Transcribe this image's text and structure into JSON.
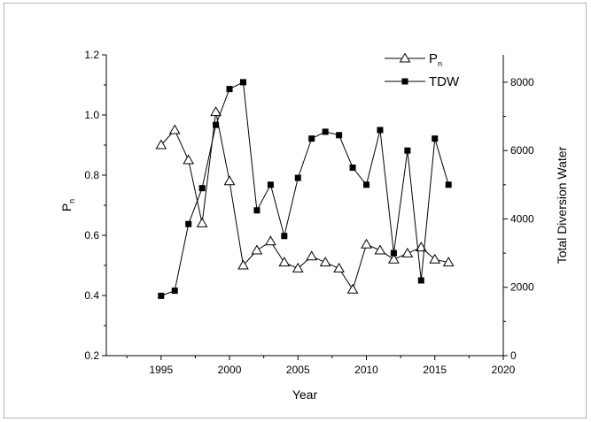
{
  "chart_data": {
    "type": "line",
    "xlabel": "Year",
    "ylabel_left": "P",
    "ylabel_left_sub": "n",
    "ylabel_right": "Total Diversion Water",
    "xlim": [
      1991,
      2020
    ],
    "ylim_left": [
      0.2,
      1.2
    ],
    "ylim_right": [
      0,
      8800
    ],
    "x_ticks": [
      1995,
      2000,
      2005,
      2010,
      2015,
      2020
    ],
    "y_left_ticks": [
      "0.2",
      "0.4",
      "0.6",
      "0.8",
      "1.0",
      "1.2"
    ],
    "y_right_ticks": [
      "0",
      "2000",
      "4000",
      "6000",
      "8000"
    ],
    "legend_position": "top-right",
    "x": [
      1995,
      1996,
      1997,
      1998,
      1999,
      2000,
      2001,
      2002,
      2003,
      2004,
      2005,
      2006,
      2007,
      2008,
      2009,
      2010,
      2011,
      2012,
      2013,
      2014,
      2015,
      2016
    ],
    "series": [
      {
        "name": "P",
        "name_sub": "n",
        "axis": "left",
        "marker": "open-triangle",
        "values": [
          0.9,
          0.95,
          0.85,
          0.64,
          1.01,
          0.78,
          0.5,
          0.55,
          0.58,
          0.51,
          0.49,
          0.53,
          0.51,
          0.49,
          0.42,
          0.57,
          0.55,
          0.52,
          0.54,
          0.56,
          0.52,
          0.51
        ]
      },
      {
        "name": "TDW",
        "axis": "right",
        "marker": "filled-square",
        "values": [
          1750,
          1900,
          3850,
          4900,
          6750,
          7800,
          8000,
          4250,
          5000,
          3500,
          5200,
          6350,
          6550,
          6450,
          5500,
          5000,
          6600,
          3000,
          6000,
          2200,
          6350,
          5000
        ]
      }
    ]
  }
}
